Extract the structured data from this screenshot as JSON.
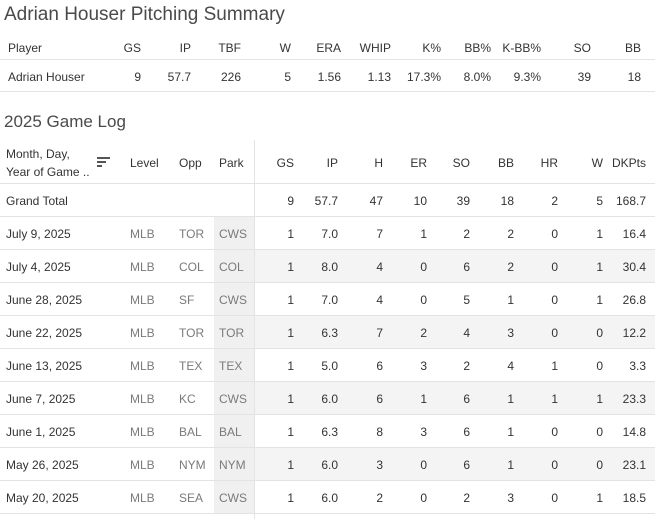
{
  "summary": {
    "title": "Adrian Houser Pitching Summary",
    "headers": [
      "Player",
      "GS",
      "IP",
      "TBF",
      "W",
      "ERA",
      "WHIP",
      "K%",
      "BB%",
      "K-BB%",
      "SO",
      "BB"
    ],
    "row": [
      "Adrian Houser",
      "9",
      "57.7",
      "226",
      "5",
      "1.56",
      "1.13",
      "17.3%",
      "8.0%",
      "9.3%",
      "39",
      "18"
    ]
  },
  "gamelog": {
    "title": "2025 Game Log",
    "header_date_line1": "Month, Day,",
    "header_date_line2": "Year of Game ..",
    "headers": [
      "Level",
      "Opp",
      "Park",
      "GS",
      "IP",
      "H",
      "ER",
      "SO",
      "BB",
      "HR",
      "W",
      "DKPts"
    ],
    "grand_total": {
      "label": "Grand Total",
      "values": [
        "9",
        "57.7",
        "47",
        "10",
        "39",
        "18",
        "2",
        "5",
        "168.7"
      ]
    },
    "rows": [
      {
        "date": "July 9, 2025",
        "level": "MLB",
        "opp": "TOR",
        "park": "CWS",
        "values": [
          "1",
          "7.0",
          "7",
          "1",
          "2",
          "2",
          "0",
          "1",
          "16.4"
        ]
      },
      {
        "date": "July 4, 2025",
        "level": "MLB",
        "opp": "COL",
        "park": "COL",
        "values": [
          "1",
          "8.0",
          "4",
          "0",
          "6",
          "2",
          "0",
          "1",
          "30.4"
        ]
      },
      {
        "date": "June 28, 2025",
        "level": "MLB",
        "opp": "SF",
        "park": "CWS",
        "values": [
          "1",
          "7.0",
          "4",
          "0",
          "5",
          "1",
          "0",
          "1",
          "26.8"
        ]
      },
      {
        "date": "June 22, 2025",
        "level": "MLB",
        "opp": "TOR",
        "park": "TOR",
        "values": [
          "1",
          "6.3",
          "7",
          "2",
          "4",
          "3",
          "0",
          "0",
          "12.2"
        ]
      },
      {
        "date": "June 13, 2025",
        "level": "MLB",
        "opp": "TEX",
        "park": "TEX",
        "values": [
          "1",
          "5.0",
          "6",
          "3",
          "2",
          "4",
          "1",
          "0",
          "3.3"
        ]
      },
      {
        "date": "June 7, 2025",
        "level": "MLB",
        "opp": "KC",
        "park": "CWS",
        "values": [
          "1",
          "6.0",
          "6",
          "1",
          "6",
          "1",
          "1",
          "1",
          "23.3"
        ]
      },
      {
        "date": "June 1, 2025",
        "level": "MLB",
        "opp": "BAL",
        "park": "BAL",
        "values": [
          "1",
          "6.3",
          "8",
          "3",
          "6",
          "1",
          "0",
          "0",
          "14.8"
        ]
      },
      {
        "date": "May 26, 2025",
        "level": "MLB",
        "opp": "NYM",
        "park": "NYM",
        "values": [
          "1",
          "6.0",
          "3",
          "0",
          "6",
          "1",
          "0",
          "0",
          "23.1"
        ]
      },
      {
        "date": "May 20, 2025",
        "level": "MLB",
        "opp": "SEA",
        "park": "CWS",
        "values": [
          "1",
          "6.0",
          "2",
          "0",
          "2",
          "3",
          "0",
          "1",
          "18.5"
        ]
      }
    ]
  },
  "icons": {
    "sort": "sort-descending-icon"
  }
}
